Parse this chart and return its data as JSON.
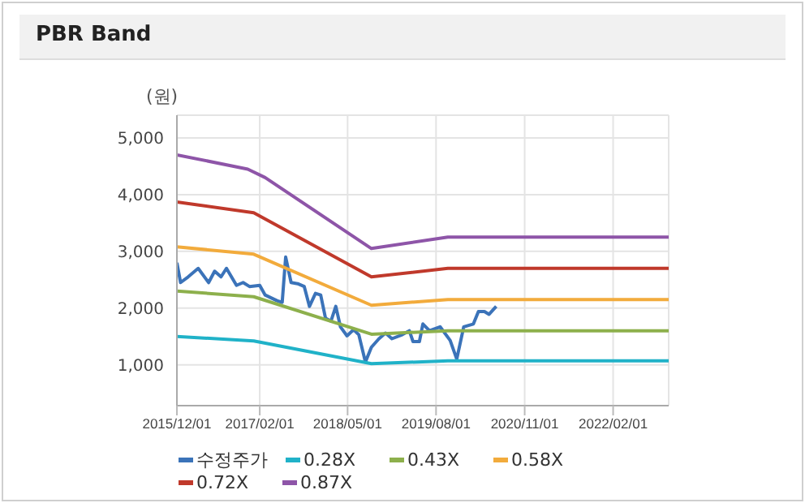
{
  "chart_data": {
    "type": "line",
    "title": "PBR Band",
    "ylabel": "(원)",
    "xlim": [
      "2015-12-01",
      "2022-11-15"
    ],
    "xticks": [
      {
        "value": "2015-12-01",
        "label": "2015/12/01"
      },
      {
        "value": "2017-02-01",
        "label": "2017/02/01"
      },
      {
        "value": "2018-05-01",
        "label": "2018/05/01"
      },
      {
        "value": "2019-08-01",
        "label": "2019/08/01"
      },
      {
        "value": "2020-11-01",
        "label": "2020/11/01"
      },
      {
        "value": "2022-02-01",
        "label": "2022/02/01"
      }
    ],
    "ylim": [
      280,
      5400
    ],
    "yticks": [
      {
        "value": 1000,
        "label": "1,000"
      },
      {
        "value": 2000,
        "label": "2,000"
      },
      {
        "value": 3000,
        "label": "3,000"
      },
      {
        "value": 4000,
        "label": "4,000"
      },
      {
        "value": 5000,
        "label": "5,000"
      }
    ],
    "grid": true,
    "legend": "bottom",
    "marker": "none",
    "line_style": "solid",
    "series": [
      {
        "name": "수정주가",
        "color": "#3b73b9",
        "x": [
          "2015-12-01",
          "2015-12-20",
          "2016-01-28",
          "2016-03-20",
          "2016-05-13",
          "2016-06-13",
          "2016-07-16",
          "2016-08-13",
          "2016-10-04",
          "2016-11-07",
          "2016-12-10",
          "2017-02-01",
          "2017-03-01",
          "2017-05-01",
          "2017-05-28",
          "2017-06-15",
          "2017-07-13",
          "2017-08-16",
          "2017-09-19",
          "2017-10-16",
          "2017-11-16",
          "2017-12-13",
          "2018-01-07",
          "2018-02-04",
          "2018-03-01",
          "2018-03-25",
          "2018-04-28",
          "2018-06-01",
          "2018-06-28",
          "2018-08-01",
          "2018-09-01",
          "2018-10-10",
          "2018-11-13",
          "2018-12-16",
          "2019-02-07",
          "2019-03-16",
          "2019-04-04",
          "2019-05-07",
          "2019-05-25",
          "2019-06-28",
          "2019-08-22",
          "2019-10-13",
          "2019-11-16",
          "2019-12-22",
          "2020-02-10",
          "2020-03-07",
          "2020-04-07",
          "2020-05-01",
          "2020-06-07"
        ],
        "values": [
          2800,
          2450,
          2550,
          2700,
          2450,
          2650,
          2550,
          2700,
          2400,
          2450,
          2380,
          2400,
          2230,
          2130,
          2100,
          2900,
          2450,
          2430,
          2380,
          2030,
          2260,
          2230,
          1820,
          1770,
          2030,
          1670,
          1510,
          1620,
          1530,
          1050,
          1310,
          1460,
          1560,
          1460,
          1530,
          1600,
          1410,
          1410,
          1720,
          1600,
          1670,
          1430,
          1100,
          1670,
          1720,
          1940,
          1940,
          1890,
          2030
        ]
      },
      {
        "name": "0.28X",
        "color": "#20b2c8",
        "x": [
          "2015-12-01",
          "2017-01-01",
          "2018-09-01",
          "2019-10-01",
          "2022-11-15"
        ],
        "values": [
          1500,
          1420,
          1020,
          1070,
          1070
        ]
      },
      {
        "name": "0.43X",
        "color": "#8db04c",
        "x": [
          "2015-12-01",
          "2017-01-01",
          "2018-09-01",
          "2019-10-01",
          "2022-11-15"
        ],
        "values": [
          2300,
          2200,
          1540,
          1600,
          1600
        ]
      },
      {
        "name": "0.58X",
        "color": "#f2ab3c",
        "x": [
          "2015-12-01",
          "2017-01-01",
          "2018-09-01",
          "2019-10-01",
          "2022-11-15"
        ],
        "values": [
          3080,
          2950,
          2050,
          2150,
          2150
        ]
      },
      {
        "name": "0.72X",
        "color": "#c0392b",
        "x": [
          "2015-12-01",
          "2017-01-01",
          "2018-09-01",
          "2019-10-01",
          "2022-11-15"
        ],
        "values": [
          3870,
          3680,
          2550,
          2700,
          2700
        ]
      },
      {
        "name": "0.87X",
        "color": "#8e55a8",
        "x": [
          "2015-12-01",
          "2016-12-01",
          "2017-03-01",
          "2018-09-01",
          "2019-10-01",
          "2022-11-15"
        ],
        "values": [
          4700,
          4450,
          4300,
          3050,
          3250,
          3250
        ]
      }
    ]
  }
}
